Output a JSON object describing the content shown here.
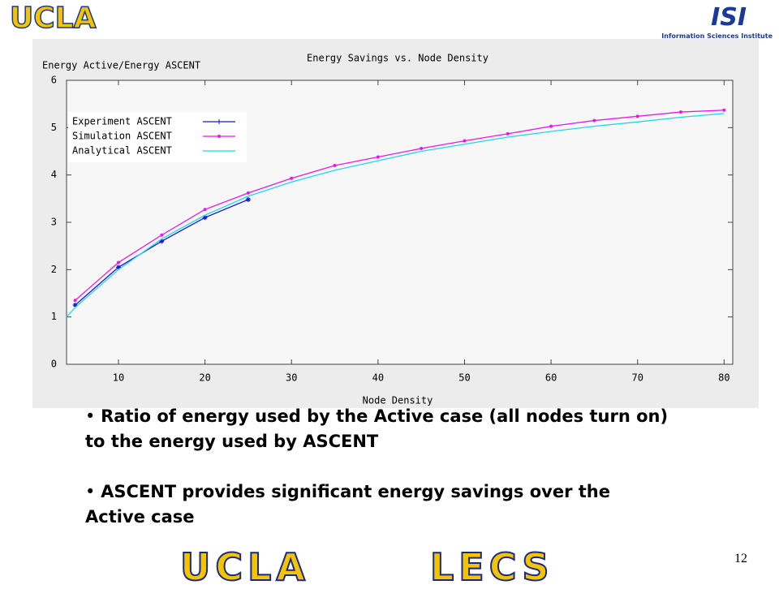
{
  "header": {
    "left_logo": "UCLA",
    "right_logo": "ISI",
    "right_logo_caption": "Information Sciences Institute"
  },
  "chart_data": {
    "type": "line",
    "title": "Energy Savings vs. Node Density",
    "y_label": "Energy Active/Energy ASCENT",
    "x_label": "Node Density",
    "xlim": [
      4,
      81
    ],
    "ylim": [
      0,
      6
    ],
    "xticks": [
      10,
      20,
      30,
      40,
      50,
      60,
      70,
      80
    ],
    "yticks": [
      0,
      1,
      2,
      3,
      4,
      5,
      6
    ],
    "legend": "upper-left",
    "series": [
      {
        "name": "Experiment ASCENT",
        "color": "#1a1acc",
        "marker": "star",
        "x": [
          5,
          10,
          15,
          20,
          25
        ],
        "values": [
          1.25,
          2.05,
          2.6,
          3.1,
          3.48
        ]
      },
      {
        "name": "Simulation ASCENT",
        "color": "#e619e6",
        "marker": "dot",
        "x": [
          5,
          10,
          15,
          20,
          25,
          30,
          35,
          40,
          45,
          50,
          55,
          60,
          65,
          70,
          75,
          80
        ],
        "values": [
          1.35,
          2.15,
          2.73,
          3.27,
          3.62,
          3.93,
          4.2,
          4.38,
          4.56,
          4.72,
          4.87,
          5.03,
          5.15,
          5.24,
          5.33,
          5.37
        ]
      },
      {
        "name": "Analytical ASCENT",
        "color": "#22d8e8",
        "marker": "none",
        "x": [
          4,
          5,
          10,
          15,
          20,
          25,
          30,
          35,
          40,
          45,
          50,
          55,
          60,
          65,
          70,
          75,
          80
        ],
        "values": [
          1.0,
          1.2,
          2.0,
          2.65,
          3.15,
          3.55,
          3.85,
          4.1,
          4.3,
          4.5,
          4.65,
          4.8,
          4.92,
          5.03,
          5.12,
          5.22,
          5.3
        ]
      }
    ]
  },
  "bullets": [
    "Ratio of energy used by the Active case (all nodes turn on) to the energy used by ASCENT",
    "ASCENT provides significant energy savings over the Active case"
  ],
  "footer": {
    "left": "UCLA",
    "right": "LECS"
  },
  "slide_number": "12"
}
